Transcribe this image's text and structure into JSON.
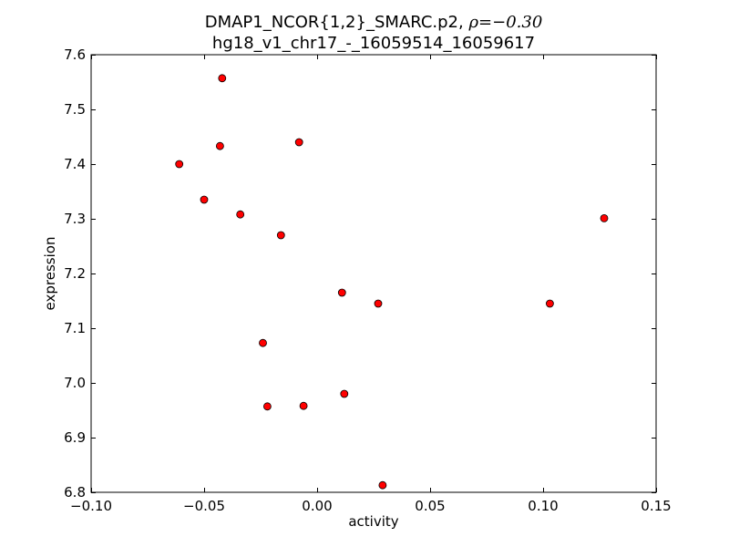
{
  "chart_data": {
    "type": "scatter",
    "title_line1_prefix": "DMAP1_NCOR{1,2}_SMARC.p2, ",
    "title_rho_symbol": "ρ",
    "title_rho_value": "=−0.30",
    "title_line2": "hg18_v1_chr17_-_16059514_16059617",
    "xlabel": "activity",
    "ylabel": "expression",
    "xlim": [
      -0.1,
      0.15
    ],
    "ylim": [
      6.8,
      7.6
    ],
    "xticks": [
      -0.1,
      -0.05,
      0.0,
      0.05,
      0.1,
      0.15
    ],
    "xtick_labels": [
      "−0.10",
      "−0.05",
      "0.00",
      "0.05",
      "0.10",
      "0.15"
    ],
    "yticks": [
      6.8,
      6.9,
      7.0,
      7.1,
      7.2,
      7.3,
      7.4,
      7.5,
      7.6
    ],
    "ytick_labels": [
      "6.8",
      "6.9",
      "7.0",
      "7.1",
      "7.2",
      "7.3",
      "7.4",
      "7.5",
      "7.6"
    ],
    "grid": false,
    "marker_color": "#ff0000",
    "marker_edge_color": "#000000",
    "points": [
      {
        "x": -0.042,
        "y": 7.557
      },
      {
        "x": -0.043,
        "y": 7.433
      },
      {
        "x": -0.008,
        "y": 7.44
      },
      {
        "x": -0.061,
        "y": 7.4
      },
      {
        "x": -0.05,
        "y": 7.335
      },
      {
        "x": -0.034,
        "y": 7.308
      },
      {
        "x": -0.016,
        "y": 7.27
      },
      {
        "x": 0.127,
        "y": 7.301
      },
      {
        "x": 0.011,
        "y": 7.165
      },
      {
        "x": 0.027,
        "y": 7.145
      },
      {
        "x": 0.103,
        "y": 7.145
      },
      {
        "x": -0.024,
        "y": 7.073
      },
      {
        "x": 0.012,
        "y": 6.98
      },
      {
        "x": -0.022,
        "y": 6.957
      },
      {
        "x": -0.006,
        "y": 6.958
      },
      {
        "x": 0.029,
        "y": 6.813
      }
    ]
  }
}
